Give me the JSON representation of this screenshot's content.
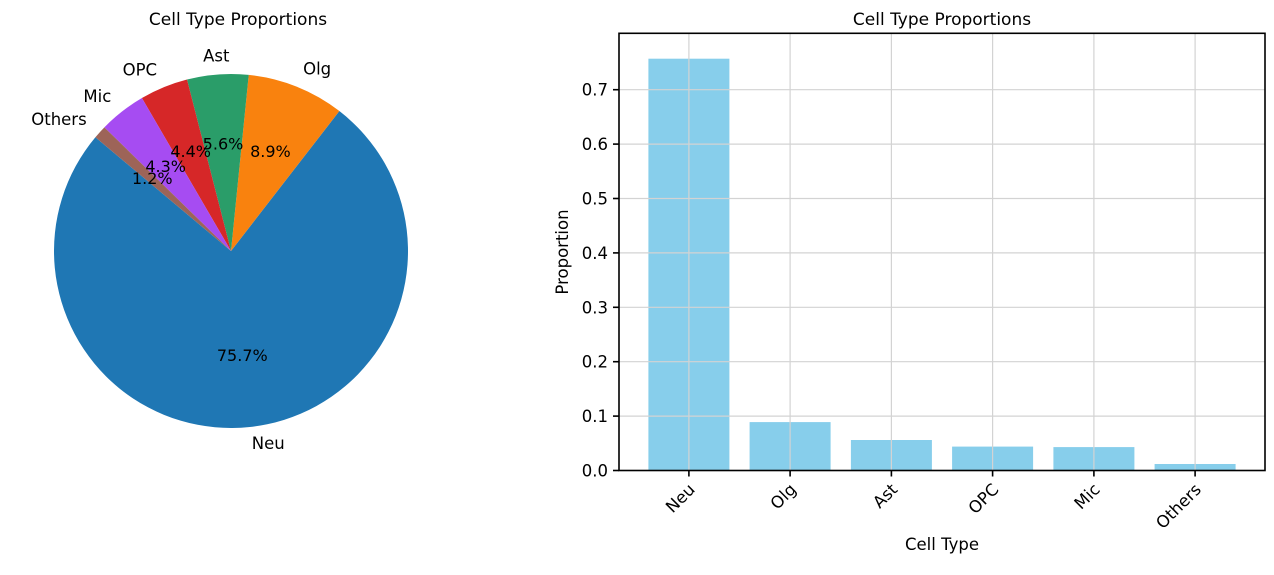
{
  "figure": {
    "background": "#ffffff"
  },
  "chart_data": [
    {
      "type": "pie",
      "title": "Cell Type Proportions",
      "categories": [
        "Neu",
        "Olg",
        "Ast",
        "OPC",
        "Mic",
        "Others"
      ],
      "values": [
        0.757,
        0.089,
        0.056,
        0.044,
        0.043,
        0.012
      ],
      "pct_labels": [
        "75.7%",
        "8.9%",
        "5.6%",
        "4.4%",
        "4.3%",
        "1.2%"
      ],
      "colors": [
        "#1f77b4",
        "#f9820e",
        "#2a9d69",
        "#d62728",
        "#a64cf2",
        "#9d6458"
      ],
      "start_angle": 140,
      "counterclock": true,
      "label_distance": 1.1,
      "pct_distance": 0.6,
      "legend_position": "none"
    },
    {
      "type": "bar",
      "title": "Cell Type Proportions",
      "xlabel": "Cell Type",
      "ylabel": "Proportion",
      "categories": [
        "Neu",
        "Olg",
        "Ast",
        "OPC",
        "Mic",
        "Others"
      ],
      "values": [
        0.757,
        0.089,
        0.056,
        0.044,
        0.043,
        0.012
      ],
      "bar_color": "#87ceeb",
      "ylim": [
        0,
        0.8036
      ],
      "yticks": [
        0.0,
        0.1,
        0.2,
        0.3,
        0.4,
        0.5,
        0.6,
        0.7
      ],
      "ytick_labels": [
        "0.0",
        "0.1",
        "0.2",
        "0.3",
        "0.4",
        "0.5",
        "0.6",
        "0.7"
      ],
      "xtick_rotation": 45,
      "grid": true,
      "grid_color": "#d3d3d3",
      "spine_color": "#000000",
      "legend_position": "none"
    }
  ]
}
